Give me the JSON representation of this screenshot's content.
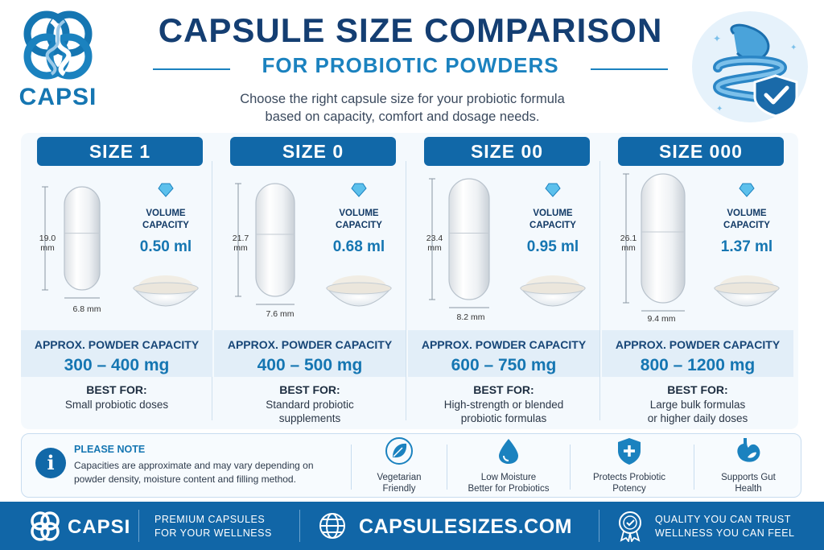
{
  "brand": {
    "name": "CAPSI"
  },
  "header": {
    "title": "CAPSULE SIZE COMPARISON",
    "subtitle": "FOR PROBIOTIC POWDERS",
    "intro_line1": "Choose the right capsule size for your probiotic formula",
    "intro_line2": "based on capacity, comfort and dosage needs."
  },
  "labels": {
    "volume_line1": "VOLUME",
    "volume_line2": "CAPACITY",
    "powder_capacity": "APPROX. POWDER CAPACITY",
    "best_for": "BEST FOR:"
  },
  "sizes": [
    {
      "name": "SIZE 1",
      "length": "19.0",
      "length_unit": "mm",
      "diameter": "6.8 mm",
      "volume": "0.50 ml",
      "powder": "300 – 400 mg",
      "best_line1": "Small probiotic doses",
      "best_line2": ""
    },
    {
      "name": "SIZE 0",
      "length": "21.7",
      "length_unit": "mm",
      "diameter": "7.6 mm",
      "volume": "0.68 ml",
      "powder": "400 – 500 mg",
      "best_line1": "Standard probiotic",
      "best_line2": "supplements"
    },
    {
      "name": "SIZE 00",
      "length": "23.4",
      "length_unit": "mm",
      "diameter": "8.2 mm",
      "volume": "0.95 ml",
      "powder": "600 – 750 mg",
      "best_line1": "High-strength or blended",
      "best_line2": "probiotic formulas"
    },
    {
      "name": "SIZE 000",
      "length": "26.1",
      "length_unit": "mm",
      "diameter": "9.4 mm",
      "volume": "1.37 ml",
      "powder": "800 – 1200 mg",
      "best_line1": "Large bulk formulas",
      "best_line2": "or higher daily doses"
    }
  ],
  "note": {
    "icon": "info-icon",
    "title": "PLEASE NOTE",
    "line1": "Capacities are approximate and may vary depending on",
    "line2": "powder density, moisture content and filling method."
  },
  "features": [
    {
      "icon": "leaf-icon",
      "line1": "Vegetarian",
      "line2": "Friendly"
    },
    {
      "icon": "water-drop-icon",
      "line1": "Low Moisture",
      "line2": "Better for Probiotics"
    },
    {
      "icon": "shield-plus-icon",
      "line1": "Protects Probiotic",
      "line2": "Potency"
    },
    {
      "icon": "stomach-icon",
      "line1": "Supports Gut",
      "line2": "Health"
    }
  ],
  "footer": {
    "brand": "CAPSI",
    "tag_line1": "PREMIUM CAPSULES",
    "tag_line2": "FOR YOUR WELLNESS",
    "url": "CAPSULESIZES.COM",
    "quality_line1": "QUALITY YOU CAN TRUST",
    "quality_line2": "WELLNESS YOU CAN FEEL"
  },
  "colors": {
    "primary": "#1168a8",
    "accent": "#1b82bf",
    "navy": "#143e72"
  }
}
